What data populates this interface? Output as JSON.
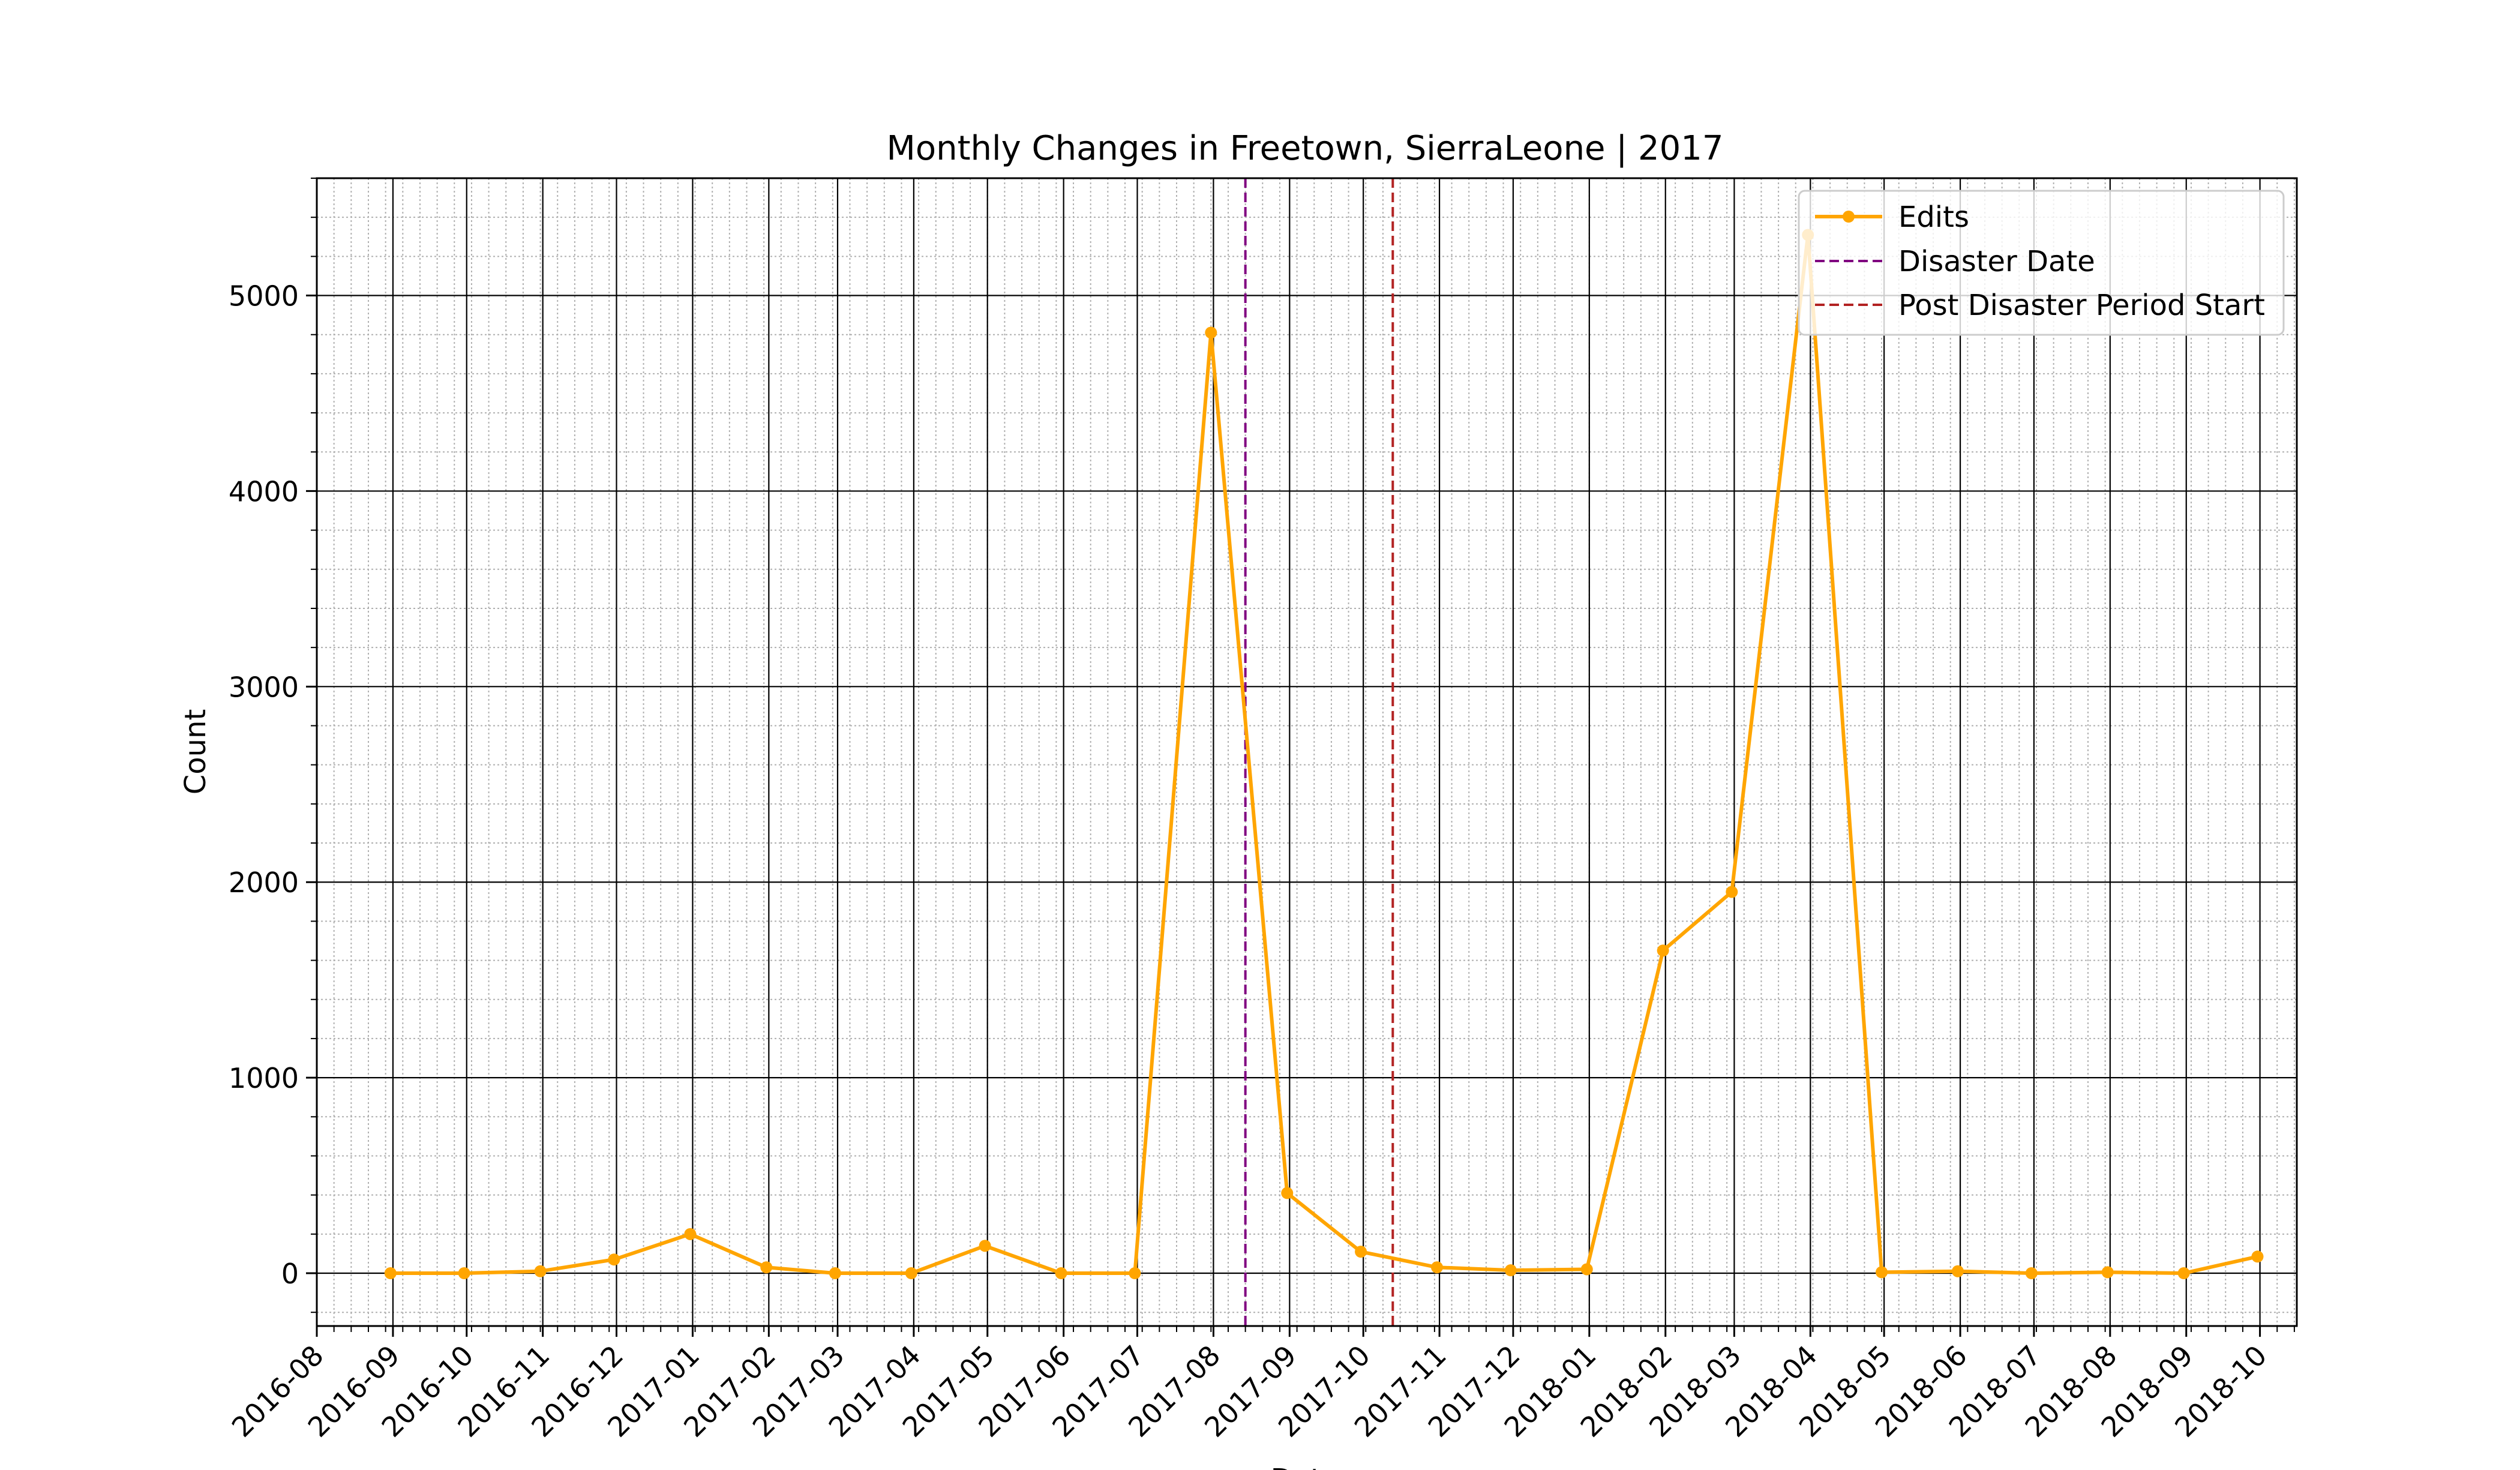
{
  "chart_data": {
    "type": "line",
    "title": "Monthly Changes in Freetown, SierraLeone | 2017",
    "xlabel": "Date",
    "ylabel": "Count",
    "xlim": [
      "2016-08-01",
      "2018-10-16"
    ],
    "ylim": [
      -270,
      5600
    ],
    "x_ticks": [
      "2016-08",
      "2016-09",
      "2016-10",
      "2016-11",
      "2016-12",
      "2017-01",
      "2017-02",
      "2017-03",
      "2017-04",
      "2017-05",
      "2017-06",
      "2017-07",
      "2017-08",
      "2017-09",
      "2017-10",
      "2017-11",
      "2017-12",
      "2018-01",
      "2018-02",
      "2018-03",
      "2018-04",
      "2018-05",
      "2018-06",
      "2018-07",
      "2018-08",
      "2018-09",
      "2018-10"
    ],
    "y_ticks": [
      0,
      1000,
      2000,
      3000,
      4000,
      5000
    ],
    "grid": {
      "major": true,
      "minor": true
    },
    "legend_position": "top-right",
    "series": [
      {
        "name": "Edits",
        "color": "#ffa500",
        "marker": "circle",
        "x": [
          "2016-08-31",
          "2016-09-30",
          "2016-10-31",
          "2016-11-30",
          "2016-12-31",
          "2017-01-31",
          "2017-02-28",
          "2017-03-31",
          "2017-04-30",
          "2017-05-31",
          "2017-06-30",
          "2017-07-31",
          "2017-08-31",
          "2017-09-30",
          "2017-10-31",
          "2017-11-30",
          "2017-12-31",
          "2018-01-31",
          "2018-02-28",
          "2018-03-31",
          "2018-04-30",
          "2018-05-31",
          "2018-06-30",
          "2018-07-31",
          "2018-08-31",
          "2018-09-30"
        ],
        "values": [
          0,
          0,
          10,
          70,
          200,
          30,
          0,
          0,
          140,
          0,
          0,
          4810,
          410,
          110,
          30,
          15,
          20,
          1650,
          1950,
          5310,
          5,
          10,
          0,
          5,
          0,
          85
        ]
      }
    ],
    "vlines": [
      {
        "name": "Disaster Date",
        "x": "2017-08-14",
        "color": "#800080",
        "style": "dashed"
      },
      {
        "name": "Post Disaster Period Start",
        "x": "2017-10-13",
        "color": "#b22222",
        "style": "dashed"
      }
    ]
  }
}
